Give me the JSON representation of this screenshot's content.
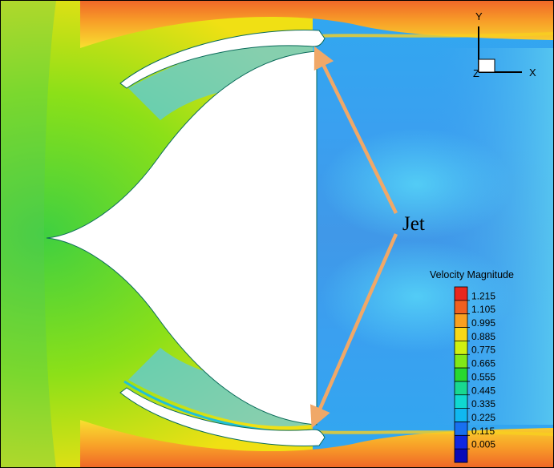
{
  "annotation": {
    "label": "Jet"
  },
  "axes": {
    "y_label": "Y",
    "x_label": "X",
    "z_label": "Z"
  },
  "legend": {
    "title": "Velocity Magnitude",
    "levels": [
      "1.215",
      "1.105",
      "0.995",
      "0.885",
      "0.775",
      "0.665",
      "0.555",
      "0.445",
      "0.335",
      "0.225",
      "0.115",
      "0.005"
    ]
  },
  "colors": {
    "arrow": "#f0a868",
    "body": "#ffffff",
    "colormap": [
      "#e8281e",
      "#f06020",
      "#f8a020",
      "#f8d818",
      "#d0f010",
      "#80e818",
      "#28d830",
      "#18d890",
      "#10d8d0",
      "#10b8f0",
      "#1870f0",
      "#1028e0",
      "#0a0ab8"
    ]
  }
}
